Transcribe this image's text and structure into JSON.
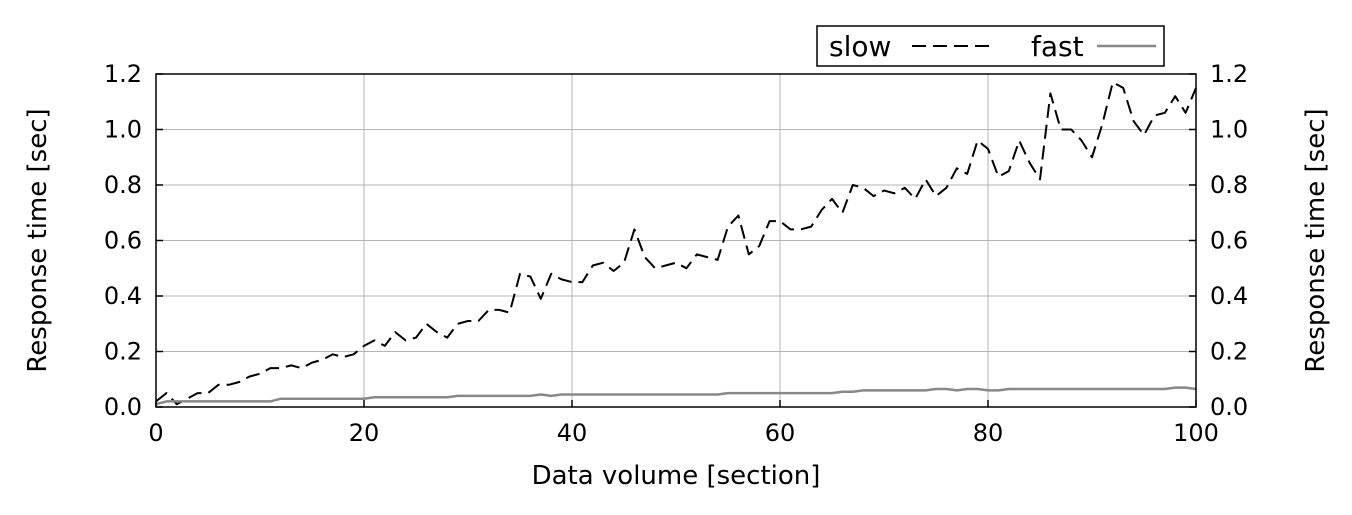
{
  "chart_data": {
    "type": "line",
    "xlabel": "Data volume [section]",
    "ylabel_left": "Response time [sec]",
    "ylabel_right": "Response time [sec]",
    "xlim": [
      0,
      100
    ],
    "ylim": [
      0,
      1.2
    ],
    "x_ticks": [
      0,
      20,
      40,
      60,
      80,
      100
    ],
    "x_tick_labels": [
      "0",
      "20",
      "40",
      "60",
      "80",
      "100"
    ],
    "y_ticks": [
      0,
      0.2,
      0.4,
      0.6,
      0.8,
      1.0,
      1.2
    ],
    "y_tick_labels": [
      "0.0",
      "0.2",
      "0.4",
      "0.6",
      "0.8",
      "1.0",
      "1.2"
    ],
    "grid": true,
    "legend_position": "top-right, above plot",
    "x": [
      0,
      1,
      2,
      3,
      4,
      5,
      6,
      7,
      8,
      9,
      10,
      11,
      12,
      13,
      14,
      15,
      16,
      17,
      18,
      19,
      20,
      21,
      22,
      23,
      24,
      25,
      26,
      27,
      28,
      29,
      30,
      31,
      32,
      33,
      34,
      35,
      36,
      37,
      38,
      39,
      40,
      41,
      42,
      43,
      44,
      45,
      46,
      47,
      48,
      49,
      50,
      51,
      52,
      53,
      54,
      55,
      56,
      57,
      58,
      59,
      60,
      61,
      62,
      63,
      64,
      65,
      66,
      67,
      68,
      69,
      70,
      71,
      72,
      73,
      74,
      75,
      76,
      77,
      78,
      79,
      80,
      81,
      82,
      83,
      84,
      85,
      86,
      87,
      88,
      89,
      90,
      91,
      92,
      93,
      94,
      95,
      96,
      97,
      98,
      99,
      100
    ],
    "series": [
      {
        "name": "slow",
        "color": "#000000",
        "dash": "dashed",
        "values": [
          0.02,
          0.05,
          0.01,
          0.03,
          0.05,
          0.05,
          0.08,
          0.08,
          0.09,
          0.11,
          0.12,
          0.14,
          0.14,
          0.15,
          0.14,
          0.16,
          0.17,
          0.19,
          0.18,
          0.19,
          0.22,
          0.24,
          0.22,
          0.27,
          0.24,
          0.25,
          0.3,
          0.27,
          0.25,
          0.3,
          0.31,
          0.31,
          0.35,
          0.35,
          0.34,
          0.48,
          0.47,
          0.39,
          0.48,
          0.46,
          0.45,
          0.45,
          0.51,
          0.52,
          0.49,
          0.52,
          0.64,
          0.54,
          0.5,
          0.51,
          0.52,
          0.5,
          0.55,
          0.54,
          0.53,
          0.65,
          0.69,
          0.55,
          0.58,
          0.67,
          0.67,
          0.64,
          0.64,
          0.65,
          0.71,
          0.75,
          0.7,
          0.8,
          0.79,
          0.76,
          0.78,
          0.77,
          0.79,
          0.75,
          0.82,
          0.76,
          0.79,
          0.86,
          0.84,
          0.96,
          0.93,
          0.83,
          0.85,
          0.96,
          0.88,
          0.82,
          1.13,
          1.0,
          1.0,
          0.96,
          0.9,
          1.02,
          1.17,
          1.15,
          1.03,
          0.98,
          1.05,
          1.06,
          1.12,
          1.06,
          1.15
        ]
      },
      {
        "name": "fast",
        "color": "#888888",
        "dash": "solid",
        "values": [
          0.01,
          0.02,
          0.02,
          0.02,
          0.02,
          0.02,
          0.02,
          0.02,
          0.02,
          0.02,
          0.02,
          0.02,
          0.03,
          0.03,
          0.03,
          0.03,
          0.03,
          0.03,
          0.03,
          0.03,
          0.03,
          0.035,
          0.035,
          0.035,
          0.035,
          0.035,
          0.035,
          0.035,
          0.035,
          0.04,
          0.04,
          0.04,
          0.04,
          0.04,
          0.04,
          0.04,
          0.04,
          0.045,
          0.04,
          0.045,
          0.045,
          0.045,
          0.045,
          0.045,
          0.045,
          0.045,
          0.045,
          0.045,
          0.045,
          0.045,
          0.045,
          0.045,
          0.045,
          0.045,
          0.045,
          0.05,
          0.05,
          0.05,
          0.05,
          0.05,
          0.05,
          0.05,
          0.05,
          0.05,
          0.05,
          0.05,
          0.055,
          0.055,
          0.06,
          0.06,
          0.06,
          0.06,
          0.06,
          0.06,
          0.06,
          0.065,
          0.065,
          0.06,
          0.065,
          0.065,
          0.06,
          0.06,
          0.065,
          0.065,
          0.065,
          0.065,
          0.065,
          0.065,
          0.065,
          0.065,
          0.065,
          0.065,
          0.065,
          0.065,
          0.065,
          0.065,
          0.065,
          0.065,
          0.07,
          0.07,
          0.065
        ]
      }
    ]
  }
}
